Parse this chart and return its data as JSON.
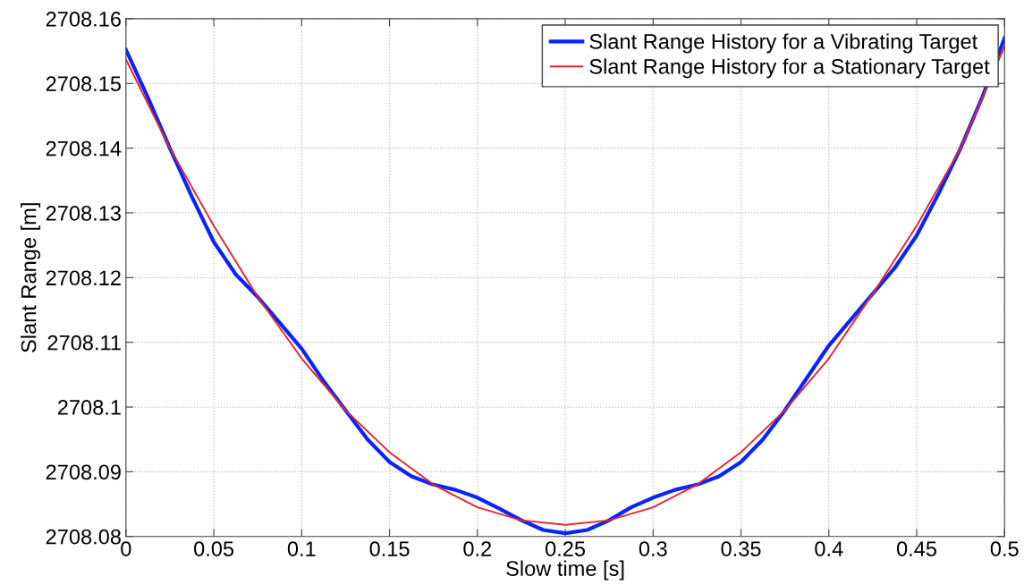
{
  "chart_data": {
    "type": "line",
    "xlabel": "Slow time [s]",
    "ylabel": "Slant Range [m]",
    "xlim": [
      0,
      0.5
    ],
    "xticks": [
      0,
      0.05,
      0.1,
      0.15,
      0.2,
      0.25,
      0.3,
      0.35,
      0.4,
      0.45,
      0.5
    ],
    "ylim": [
      2708.08,
      2708.16
    ],
    "yticks": [
      2708.08,
      2708.09,
      2708.1,
      2708.11,
      2708.12,
      2708.13,
      2708.14,
      2708.15,
      2708.16
    ],
    "grid": true,
    "legend": "top right",
    "marker": "none",
    "line_style": "solid",
    "series": [
      {
        "name": "Slant Range History for a Vibrating Target",
        "color": "#0a24ff",
        "x": [
          0,
          0.0125,
          0.025,
          0.0375,
          0.05,
          0.0625,
          0.075,
          0.0875,
          0.1,
          0.1125,
          0.125,
          0.1375,
          0.15,
          0.1625,
          0.175,
          0.1875,
          0.2,
          0.2125,
          0.225,
          0.2375,
          0.25,
          0.2625,
          0.275,
          0.2875,
          0.3,
          0.3125,
          0.325,
          0.3375,
          0.35,
          0.3625,
          0.375,
          0.3875,
          0.4,
          0.4125,
          0.425,
          0.4375,
          0.45,
          0.4625,
          0.475,
          0.4875,
          0.5
        ],
        "values": [
          2708.1552,
          2708.1478,
          2708.14,
          2708.1325,
          2708.1255,
          2708.1205,
          2708.117,
          2708.113,
          2708.109,
          2708.104,
          2708.0995,
          2708.095,
          2708.0915,
          2708.0893,
          2708.088,
          2708.0872,
          2708.086,
          2708.0843,
          2708.0825,
          2708.081,
          2708.0805,
          2708.081,
          2708.0825,
          2708.0845,
          2708.086,
          2708.0872,
          2708.088,
          2708.0893,
          2708.0915,
          2708.095,
          2708.0995,
          2708.1045,
          2708.1095,
          2708.1135,
          2708.1175,
          2708.1215,
          2708.1265,
          2708.133,
          2708.14,
          2708.148,
          2708.157
        ]
      },
      {
        "name": "Slant Range History for a Stationary Target",
        "color": "#e8262a",
        "x": [
          0,
          0.025,
          0.05,
          0.075,
          0.1,
          0.125,
          0.15,
          0.175,
          0.2,
          0.225,
          0.25,
          0.275,
          0.3,
          0.325,
          0.35,
          0.375,
          0.4,
          0.425,
          0.45,
          0.475,
          0.5
        ],
        "values": [
          2708.1537,
          2708.14,
          2708.128,
          2708.117,
          2708.1075,
          2708.0995,
          2708.093,
          2708.088,
          2708.0845,
          2708.0825,
          2708.0818,
          2708.0825,
          2708.0845,
          2708.088,
          2708.093,
          2708.0995,
          2708.1075,
          2708.1175,
          2708.128,
          2708.14,
          2708.1557
        ]
      }
    ]
  }
}
